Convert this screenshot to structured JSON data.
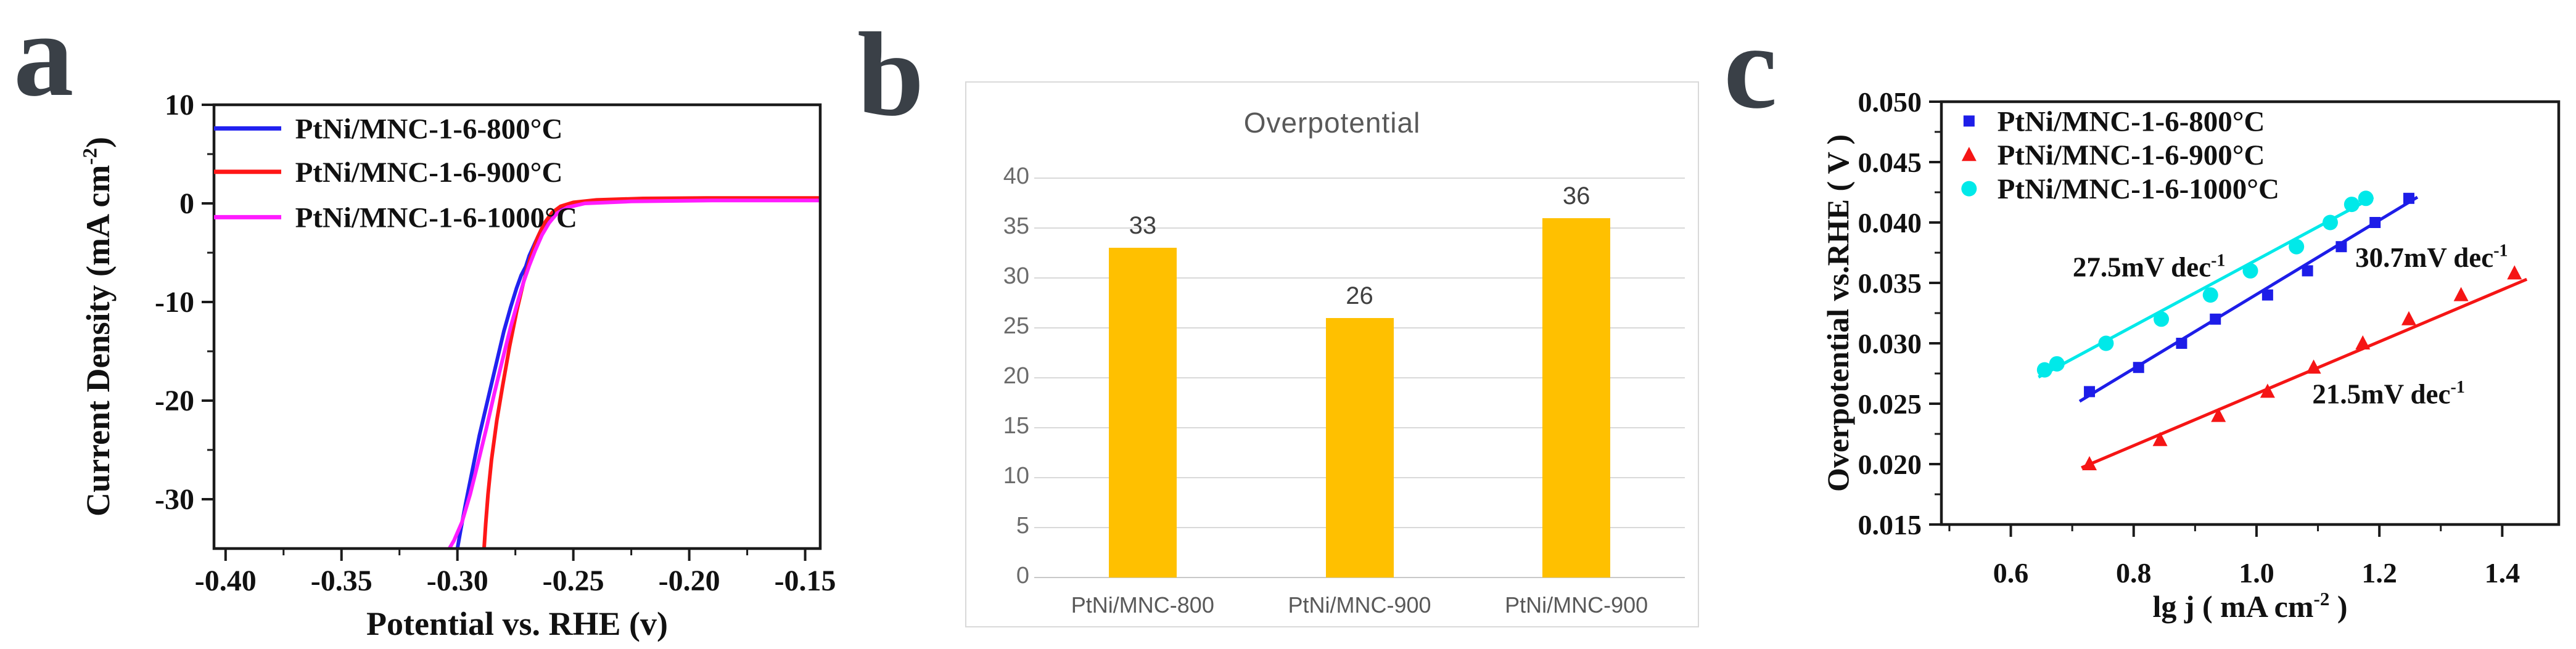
{
  "figure": {
    "background": "#ffffff",
    "panel_letter_color": "#3a4047"
  },
  "panel_labels": [
    {
      "text": "a"
    },
    {
      "text": "b"
    },
    {
      "text": "c"
    }
  ],
  "chart_data": [
    {
      "id": "a",
      "type": "line",
      "title": "",
      "xlabel": "Potential vs. RHE (v)",
      "ylabel": "Current Density (mA cm⁻²)",
      "xlim": [
        -0.405,
        -0.1435
      ],
      "ylim": [
        -35,
        10
      ],
      "xticks": [
        -0.4,
        -0.35,
        -0.3,
        -0.25,
        -0.2,
        -0.15
      ],
      "xtick_labels": [
        "-0.40",
        "-0.35",
        "-0.30",
        "-0.25",
        "-0.20",
        "-0.15"
      ],
      "x_minor_step": 0.025,
      "yticks": [
        10,
        0,
        -10,
        -20,
        -30
      ],
      "ytick_labels": [
        "10",
        "0",
        "-10",
        "-20",
        "-30"
      ],
      "y_minor_step": 5,
      "grid": false,
      "legend_position": "top-left-inside",
      "axis_color": "#1b1b1b",
      "text_color": "#111111",
      "series": [
        {
          "name": "PtNi/MNC-1-6-800°C",
          "color": "#2121f0",
          "points": [
            [
              -0.1435,
              0.35
            ],
            [
              -0.19,
              0.35
            ],
            [
              -0.225,
              0.3
            ],
            [
              -0.243,
              0.15
            ],
            [
              -0.251,
              -0.1
            ],
            [
              -0.256,
              -0.6
            ],
            [
              -0.26,
              -1.3
            ],
            [
              -0.2635,
              -2.5
            ],
            [
              -0.2665,
              -4.0
            ],
            [
              -0.269,
              -5.3
            ],
            [
              -0.2705,
              -6.4
            ],
            [
              -0.2725,
              -7.3
            ],
            [
              -0.2745,
              -8.6
            ],
            [
              -0.277,
              -10.5
            ],
            [
              -0.28,
              -13.0
            ],
            [
              -0.2835,
              -16.5
            ],
            [
              -0.287,
              -20.0
            ],
            [
              -0.2905,
              -23.5
            ],
            [
              -0.2935,
              -27.0
            ],
            [
              -0.2965,
              -30.5
            ],
            [
              -0.2985,
              -33.0
            ],
            [
              -0.3,
              -35
            ]
          ]
        },
        {
          "name": "PtNi/MNC-1-6-900°C",
          "color": "#ff1717",
          "points": [
            [
              -0.1435,
              0.55
            ],
            [
              -0.19,
              0.55
            ],
            [
              -0.22,
              0.5
            ],
            [
              -0.24,
              0.35
            ],
            [
              -0.25,
              0.1
            ],
            [
              -0.2555,
              -0.3
            ],
            [
              -0.259,
              -0.9
            ],
            [
              -0.2625,
              -2.0
            ],
            [
              -0.2655,
              -3.5
            ],
            [
              -0.2685,
              -5.5
            ],
            [
              -0.2715,
              -8.0
            ],
            [
              -0.2745,
              -11.0
            ],
            [
              -0.2775,
              -14.5
            ],
            [
              -0.2805,
              -18.5
            ],
            [
              -0.283,
              -22.0
            ],
            [
              -0.2853,
              -26.0
            ],
            [
              -0.2868,
              -29.5
            ],
            [
              -0.2878,
              -32.5
            ],
            [
              -0.2885,
              -35
            ]
          ]
        },
        {
          "name": "PtNi/MNC-1-6-1000°C",
          "color": "#ff1cff",
          "points": [
            [
              -0.1435,
              0.3
            ],
            [
              -0.19,
              0.3
            ],
            [
              -0.225,
              0.2
            ],
            [
              -0.245,
              0.0
            ],
            [
              -0.2525,
              -0.4
            ],
            [
              -0.257,
              -1.0
            ],
            [
              -0.2605,
              -2.0
            ],
            [
              -0.2635,
              -3.2
            ],
            [
              -0.2665,
              -4.8
            ],
            [
              -0.269,
              -6.3
            ],
            [
              -0.2715,
              -8.0
            ],
            [
              -0.274,
              -10.0
            ],
            [
              -0.277,
              -12.5
            ],
            [
              -0.2805,
              -15.8
            ],
            [
              -0.284,
              -19.2
            ],
            [
              -0.2875,
              -22.8
            ],
            [
              -0.291,
              -26.2
            ],
            [
              -0.2945,
              -29.5
            ],
            [
              -0.298,
              -32.3
            ],
            [
              -0.3015,
              -34.2
            ],
            [
              -0.3035,
              -35
            ]
          ]
        }
      ]
    },
    {
      "id": "b",
      "type": "bar",
      "title": "Overpotential",
      "categories": [
        "PtNi/MNC-800",
        "PtNi/MNC-900",
        "PtNi/MNC-900"
      ],
      "values": [
        33,
        26,
        36
      ],
      "value_labels": [
        "33",
        "26",
        "36"
      ],
      "ylim": [
        0,
        40
      ],
      "yticks": [
        0,
        5,
        10,
        15,
        20,
        25,
        30,
        35,
        40
      ],
      "grid": true,
      "bar_color": "#ffc000",
      "title_color": "#595959",
      "axis_text_color": "#6b6b6b",
      "category_text_color": "#595959",
      "value_text_color": "#404040",
      "grid_color": "#d9d9d9",
      "baseline_color": "#c9c9c9",
      "border_color": "#d9d9d9"
    },
    {
      "id": "c",
      "type": "scatter",
      "title": "",
      "xlabel": "lg j ( mA cm⁻² )",
      "ylabel": "Overpotential vs.RHE ( V )",
      "xlim": [
        0.487,
        1.492
      ],
      "ylim": [
        0.015,
        0.05
      ],
      "xticks": [
        0.6,
        0.8,
        1.0,
        1.2,
        1.4
      ],
      "xtick_labels": [
        "0.6",
        "0.8",
        "1.0",
        "1.2",
        "1.4"
      ],
      "x_minor_step": 0.1,
      "yticks": [
        0.015,
        0.02,
        0.025,
        0.03,
        0.035,
        0.04,
        0.045,
        0.05
      ],
      "ytick_labels": [
        "0.015",
        "0.020",
        "0.025",
        "0.030",
        "0.035",
        "0.040",
        "0.045",
        "0.050"
      ],
      "y_minor_step": 0.0025,
      "grid": false,
      "legend_position": "top-left-inside",
      "axis_color": "#1b1b1b",
      "text_color": "#111111",
      "series": [
        {
          "name": "PtNi/MNC-1-6-800°C",
          "color": "#1d1de8",
          "marker": "square",
          "points": [
            [
              0.728,
              0.026
            ],
            [
              0.808,
              0.028
            ],
            [
              0.878,
              0.03
            ],
            [
              0.933,
              0.032
            ],
            [
              1.018,
              0.034
            ],
            [
              1.083,
              0.036
            ],
            [
              1.138,
              0.038
            ],
            [
              1.193,
              0.04
            ],
            [
              1.248,
              0.042
            ]
          ],
          "fit": [
            [
              0.712,
              0.0252
            ],
            [
              1.262,
              0.0421
            ]
          ],
          "tafel_slope": "30.7mV dec⁻¹"
        },
        {
          "name": "PtNi/MNC-1-6-900°C",
          "color": "#f51515",
          "marker": "triangle",
          "points": [
            [
              0.728,
              0.02
            ],
            [
              0.843,
              0.022
            ],
            [
              0.938,
              0.024
            ],
            [
              1.018,
              0.026
            ],
            [
              1.093,
              0.028
            ],
            [
              1.173,
              0.03
            ],
            [
              1.248,
              0.032
            ],
            [
              1.333,
              0.034
            ],
            [
              1.42,
              0.0358
            ]
          ],
          "fit": [
            [
              0.715,
              0.0197
            ],
            [
              1.44,
              0.0353
            ]
          ],
          "tafel_slope": "21.5mV dec⁻¹"
        },
        {
          "name": "PtNi/MNC-1-6-1000°C",
          "color": "#00e9e9",
          "marker": "circle",
          "points": [
            [
              0.655,
              0.0278
            ],
            [
              0.675,
              0.0283
            ],
            [
              0.755,
              0.03
            ],
            [
              0.845,
              0.032
            ],
            [
              0.925,
              0.034
            ],
            [
              0.99,
              0.036
            ],
            [
              1.065,
              0.038
            ],
            [
              1.12,
              0.04
            ],
            [
              1.155,
              0.0415
            ],
            [
              1.178,
              0.042
            ]
          ],
          "fit": [
            [
              0.645,
              0.0272
            ],
            [
              1.19,
              0.0421
            ]
          ],
          "tafel_slope": "27.5mV dec⁻¹"
        }
      ],
      "annotations": [
        {
          "text": "27.5mV dec⁻¹",
          "x": 0.825,
          "y": 0.0363
        },
        {
          "text": "30.7mV dec⁻¹",
          "x": 1.285,
          "y": 0.0371
        },
        {
          "text": "21.5mV dec⁻¹",
          "x": 1.215,
          "y": 0.0258
        }
      ]
    }
  ]
}
